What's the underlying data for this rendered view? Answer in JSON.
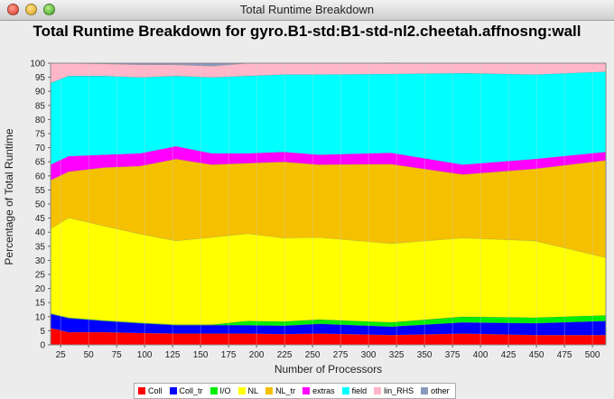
{
  "window": {
    "title": "Total Runtime Breakdown"
  },
  "chart_data": {
    "type": "area",
    "stacked": true,
    "title": "Total Runtime Breakdown for gyro.B1-std:B1-std-nl2.cheetah.affnosng:wall",
    "xlabel": "Number of Processors",
    "ylabel": "Percentage of Total Runtime",
    "ylim": [
      0,
      100
    ],
    "xlim": [
      16,
      512
    ],
    "x": [
      16,
      32,
      64,
      96,
      128,
      160,
      192,
      224,
      256,
      320,
      384,
      448,
      512
    ],
    "x_ticks": [
      25,
      50,
      75,
      100,
      125,
      150,
      175,
      200,
      225,
      250,
      275,
      300,
      325,
      350,
      375,
      400,
      425,
      450,
      475,
      500
    ],
    "y_ticks": [
      0,
      5,
      10,
      15,
      20,
      25,
      30,
      35,
      40,
      45,
      50,
      55,
      60,
      65,
      70,
      75,
      80,
      85,
      90,
      95,
      100
    ],
    "grid": true,
    "legend_position": "bottom",
    "series": [
      {
        "name": "Coll",
        "color": "#ff0000",
        "values": [
          6.0,
          4.5,
          4.5,
          4.2,
          4.0,
          4.0,
          4.0,
          3.8,
          4.0,
          3.5,
          4.0,
          3.5,
          3.5
        ]
      },
      {
        "name": "Coll_tr",
        "color": "#0000ff",
        "values": [
          5.0,
          5.0,
          4.0,
          3.5,
          3.0,
          3.0,
          3.0,
          3.0,
          3.5,
          3.0,
          4.0,
          4.2,
          5.0
        ]
      },
      {
        "name": "I/O",
        "color": "#00ee00",
        "values": [
          0.2,
          0.2,
          0.2,
          0.2,
          0.2,
          0.2,
          1.5,
          1.5,
          1.5,
          1.5,
          2.0,
          2.0,
          2.0
        ]
      },
      {
        "name": "NL",
        "color": "#ffff00",
        "values": [
          30.0,
          35.5,
          33.5,
          31.5,
          29.8,
          31.0,
          31.0,
          29.7,
          29.2,
          28.0,
          28.0,
          27.3,
          20.5
        ]
      },
      {
        "name": "NL_tr",
        "color": "#f5c000",
        "values": [
          17.3,
          16.3,
          20.8,
          24.1,
          29.0,
          25.8,
          25.0,
          27.0,
          25.8,
          28.2,
          22.5,
          25.5,
          34.5
        ]
      },
      {
        "name": "extras",
        "color": "#ff00ff",
        "values": [
          5.5,
          5.5,
          4.5,
          4.5,
          4.5,
          4.0,
          3.5,
          3.5,
          3.5,
          4.0,
          3.5,
          3.5,
          3.0
        ]
      },
      {
        "name": "field",
        "color": "#00ffff",
        "values": [
          29.0,
          28.5,
          28.0,
          27.0,
          25.0,
          27.0,
          27.5,
          27.5,
          28.5,
          28.0,
          32.5,
          30.0,
          28.5
        ]
      },
      {
        "name": "lin_RHS",
        "color": "#ffb6c8",
        "values": [
          7.0,
          4.5,
          4.3,
          4.5,
          4.0,
          4.0,
          4.5,
          4.0,
          4.0,
          4.0,
          3.5,
          4.0,
          3.0
        ]
      },
      {
        "name": "other",
        "color": "#8899bb",
        "values": [
          0.0,
          0.0,
          0.2,
          0.5,
          0.5,
          1.0,
          0.0,
          0.0,
          0.0,
          0.0,
          0.0,
          0.0,
          0.0
        ]
      }
    ]
  }
}
